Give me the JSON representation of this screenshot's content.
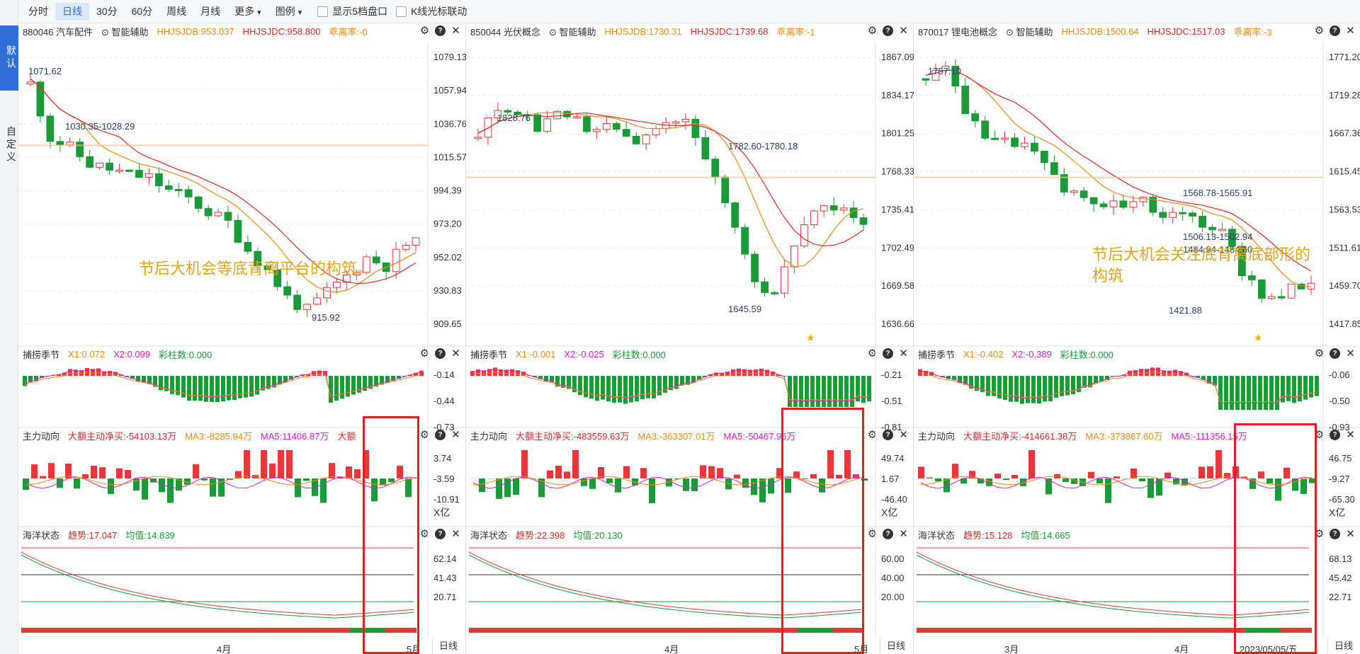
{
  "toolbar": {
    "items": [
      "分时",
      "日线",
      "30分",
      "60分",
      "周线",
      "月线",
      "更多",
      "图例"
    ],
    "active": "日线",
    "check1": "显示5档盘口",
    "check2": "K线光标联动"
  },
  "sidetabs": {
    "default": "默认",
    "custom": "自定义"
  },
  "colors": {
    "up": "#e8373a",
    "down": "#1a9a38",
    "ma_orange": "#ee8b1a",
    "ma_red": "#e02a2a",
    "magenta": "#e81ec8",
    "annot": "#e5a616",
    "redbox": "#e0221f"
  },
  "columns": [
    {
      "code": "880046 汽车配件",
      "assist": "智能辅助",
      "hb": "HHJSJDB:953.037",
      "hc": "HHJSJDC:958.800",
      "dev": "乖离率:-0",
      "price_axis": [
        "1079.13",
        "1057.94",
        "1036.76",
        "1015.57",
        "994.39",
        "973.20",
        "952.02",
        "930.83",
        "909.65"
      ],
      "price_labels": [
        "1071.62",
        "1030.35-1028.29",
        "915.92"
      ],
      "annotation": "节后大机会等底背离平台的构筑。",
      "ind1": {
        "name": "捕捞季节",
        "x1": "X1:0.072",
        "x2": "X2:0.099",
        "c": "彩柱数:0.000",
        "axis": [
          "-0.14",
          "-0.44",
          "-0.73"
        ]
      },
      "ind2": {
        "name": "主力动向",
        "a": "大额主动净买:-54103.13万",
        "b": "MA3:-8285.94万",
        "c": "MA5:11406.87万",
        "d": "大额",
        "axis": [
          "3.74",
          "-3.59",
          "-10.91"
        ],
        "unit": "X亿"
      },
      "ind3": {
        "name": "海洋状态",
        "a": "趋势:17.047",
        "b": "均值:14.839",
        "axis": [
          "62.14",
          "41.43",
          "20.71"
        ]
      },
      "months": [
        "4月",
        "5月"
      ],
      "tab": "日线"
    },
    {
      "code": "850044 光伏概念",
      "assist": "智能辅助",
      "hb": "HHJSJDB:1730.31",
      "hc": "HHJSJDC:1739.68",
      "dev": "乖离率:-1",
      "price_axis": [
        "1867.09",
        "1834.17",
        "1801.25",
        "1768.33",
        "1735.41",
        "1702.49",
        "1669.58",
        "1636.66"
      ],
      "price_labels": [
        "1828.76",
        "1782.60-1780.18",
        "1645.59"
      ],
      "annotation": "",
      "ind1": {
        "name": "捕捞季节",
        "x1": "X1:-0.001",
        "x2": "X2:-0.025",
        "c": "彩柱数:0.000",
        "axis": [
          "-0.21",
          "-0.51",
          "-0.81"
        ]
      },
      "ind2": {
        "name": "主力动向",
        "a": "大额主动净买:-483559.63万",
        "b": "MA3:-363307.01万",
        "c": "MA5:-50467.96万",
        "d": "",
        "axis": [
          "49.74",
          "1.67",
          "-46.40"
        ],
        "unit": "X亿"
      },
      "ind3": {
        "name": "海洋状态",
        "a": "趋势:22.398",
        "b": "均值:20.130",
        "axis": [
          "60.00",
          "40.00",
          "20.00"
        ]
      },
      "months": [
        "4月",
        "5月"
      ],
      "tab": "日线"
    },
    {
      "code": "870017 锂电池概念",
      "assist": "智能辅助",
      "hb": "HHJSJDB:1500.64",
      "hc": "HHJSJDC:1517.03",
      "dev": "乖离率:-3",
      "price_axis": [
        "1771.20",
        "1719.28",
        "1667.36",
        "1615.45",
        "1563.53",
        "1511.61",
        "1459.70",
        "1417.85"
      ],
      "price_labels": [
        "1757.10",
        "1568.78-1565.91",
        "1506.13-1502.94",
        "1484.94-1484.60",
        "1421.88"
      ],
      "annotation": "节后大机会关注底背离底部形的构筑",
      "ind1": {
        "name": "捕捞季节",
        "x1": "X1:-0.402",
        "x2": "X2:-0.389",
        "c": "彩柱数:0.000",
        "axis": [
          "-0.06",
          "-0.50",
          "-0.93"
        ]
      },
      "ind2": {
        "name": "主力动向",
        "a": "大额主动净买:-414661.38万",
        "b": "MA3:-373867.60万",
        "c": "MA5:-111356.15万",
        "d": "",
        "axis": [
          "46.75",
          "-9.27",
          "-65.30"
        ],
        "unit": "X亿"
      },
      "ind3": {
        "name": "海洋状态",
        "a": "趋势:15.128",
        "b": "均值:14.665",
        "axis": [
          "68.13",
          "45.42",
          "22.71"
        ]
      },
      "months": [
        "3月",
        "4月"
      ],
      "date": "2023/05/05/五",
      "tab": "日线"
    }
  ]
}
